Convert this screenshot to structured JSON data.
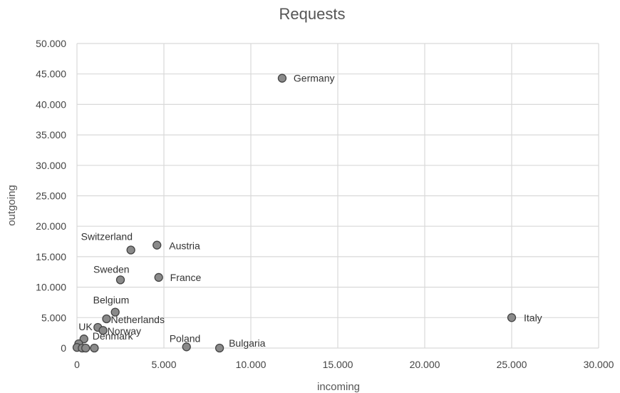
{
  "chart_data": {
    "type": "scatter",
    "title": "Requests",
    "xlabel": "incoming",
    "ylabel": "outgoing",
    "xlim": [
      0,
      30000
    ],
    "ylim": [
      0,
      50000
    ],
    "x_ticks": [
      0,
      5000,
      10000,
      15000,
      20000,
      25000,
      30000
    ],
    "y_ticks": [
      0,
      5000,
      10000,
      15000,
      20000,
      25000,
      30000,
      35000,
      40000,
      45000,
      50000
    ],
    "x_tick_labels": [
      "0",
      "5.000",
      "10.000",
      "15.000",
      "20.000",
      "25.000",
      "30.000"
    ],
    "y_tick_labels": [
      "0",
      "5.000",
      "10.000",
      "15.000",
      "20.000",
      "25.000",
      "30.000",
      "35.000",
      "40.000",
      "45.000",
      "50.000"
    ],
    "grid": true,
    "legend": "none",
    "points": [
      {
        "label": "Germany",
        "x": 11800,
        "y": 44300
      },
      {
        "label": "Italy",
        "x": 25000,
        "y": 5000
      },
      {
        "label": "Austria",
        "x": 4600,
        "y": 16900
      },
      {
        "label": "Switzerland",
        "x": 3100,
        "y": 16100
      },
      {
        "label": "France",
        "x": 4700,
        "y": 11600
      },
      {
        "label": "Sweden",
        "x": 2500,
        "y": 11200
      },
      {
        "label": "Belgium",
        "x": 2200,
        "y": 5900
      },
      {
        "label": "Netherlands",
        "x": 1700,
        "y": 4800
      },
      {
        "label": "UK",
        "x": 1200,
        "y": 3400
      },
      {
        "label": "Norway",
        "x": 1500,
        "y": 2900
      },
      {
        "label": "Denmark",
        "x": 400,
        "y": 1500
      },
      {
        "label": "Poland",
        "x": 6300,
        "y": 200
      },
      {
        "label": "Bulgaria",
        "x": 8200,
        "y": 0
      },
      {
        "label": "",
        "x": 100,
        "y": 700
      },
      {
        "label": "",
        "x": 0,
        "y": 100
      },
      {
        "label": "",
        "x": 300,
        "y": 0
      },
      {
        "label": "",
        "x": 500,
        "y": 0
      },
      {
        "label": "",
        "x": 1000,
        "y": 0
      }
    ]
  }
}
